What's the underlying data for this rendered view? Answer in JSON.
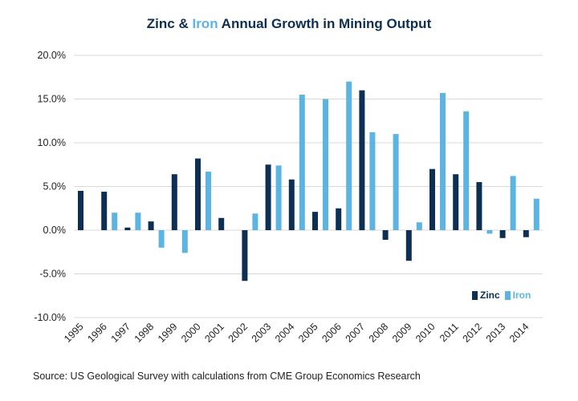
{
  "title": {
    "zinc": "Zinc",
    "amp": "&",
    "iron": "Iron",
    "rest": "Annual Growth in Mining Output"
  },
  "source": "Source: US Geological Survey with calculations from CME Group Economics Research",
  "colors": {
    "zinc": "#0d2f53",
    "iron": "#5cb4e2",
    "grid": "#d9d9d9",
    "axis_text": "#222222"
  },
  "chart_data": {
    "type": "bar",
    "categories": [
      "1995",
      "1996",
      "1997",
      "1998",
      "1999",
      "2000",
      "2001",
      "2002",
      "2003",
      "2004",
      "2005",
      "2006",
      "2007",
      "2008",
      "2009",
      "2010",
      "2011",
      "2012",
      "2013",
      "2014"
    ],
    "series": [
      {
        "name": "Zinc",
        "values": [
          4.5,
          4.4,
          0.3,
          1.0,
          6.4,
          8.2,
          1.4,
          -5.8,
          7.5,
          5.8,
          2.1,
          2.5,
          16.0,
          -1.1,
          -3.5,
          7.0,
          6.4,
          5.5,
          -0.9,
          -0.8
        ]
      },
      {
        "name": "Iron",
        "values": [
          null,
          2.0,
          2.0,
          -2.0,
          -2.6,
          6.7,
          null,
          1.9,
          7.4,
          15.5,
          15.0,
          17.0,
          11.2,
          11.0,
          0.9,
          15.7,
          13.6,
          -0.4,
          6.2,
          3.6
        ]
      }
    ],
    "yticks": [
      "20.0%",
      "15.0%",
      "10.0%",
      "5.0%",
      "0.0%",
      "-5.0%",
      "-10.0%"
    ],
    "ylim": [
      -10,
      20
    ],
    "grid": true,
    "legend_position": "bottom-right"
  }
}
